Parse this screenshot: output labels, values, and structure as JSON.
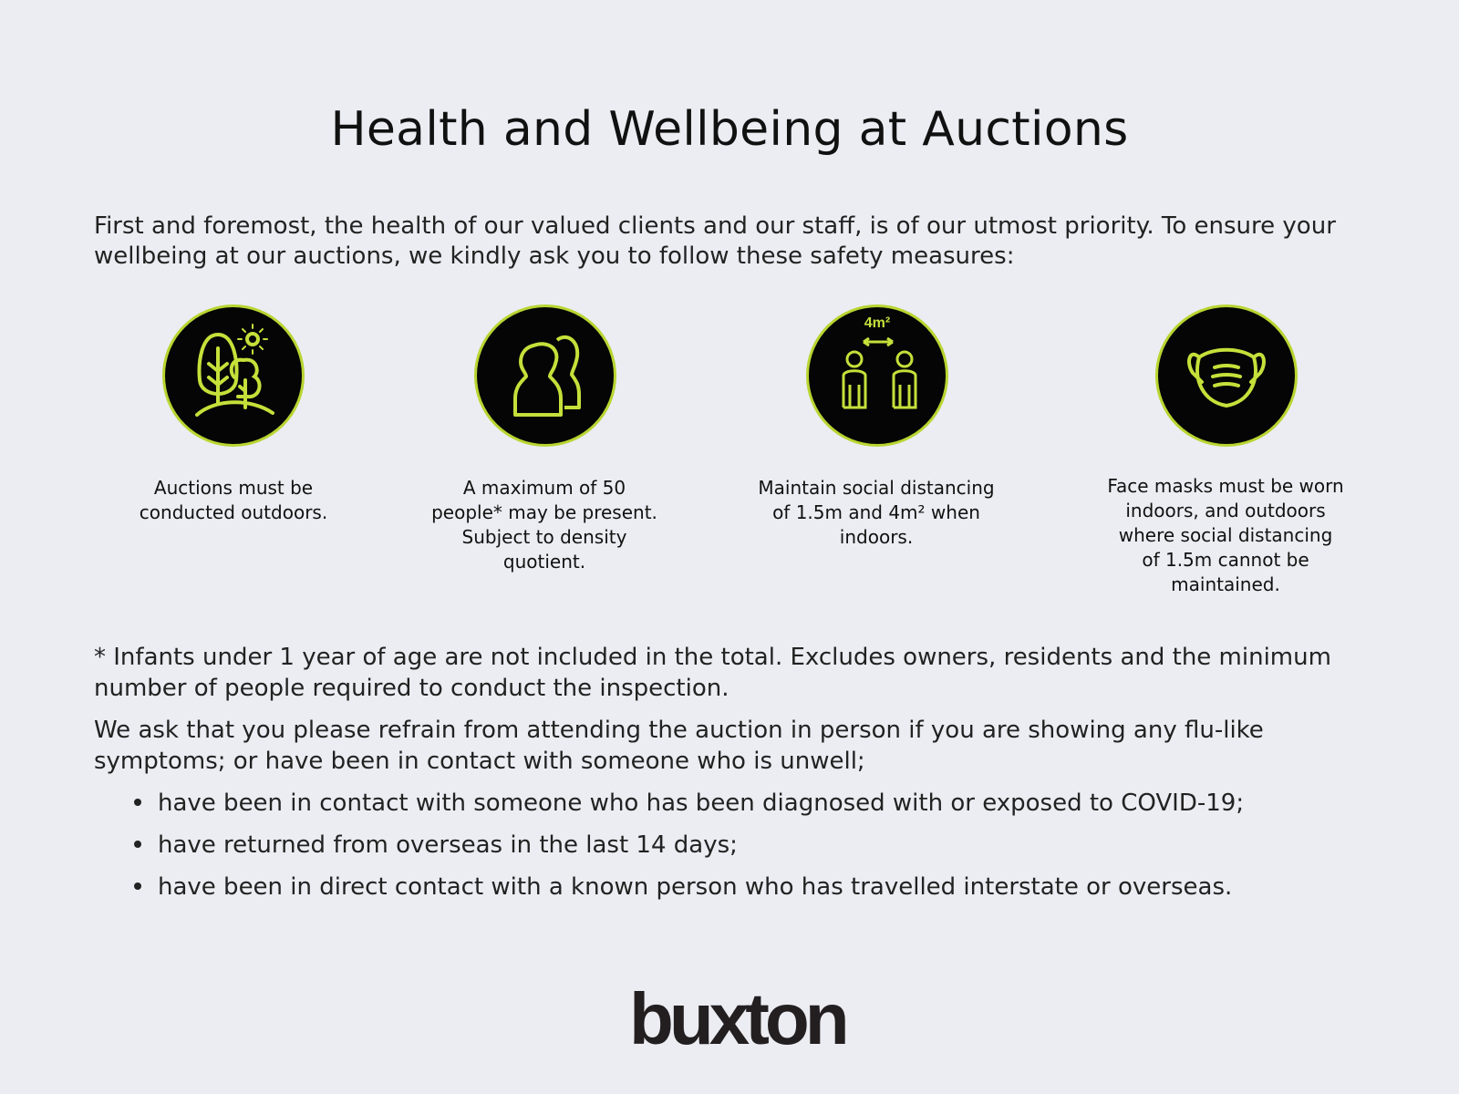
{
  "title": "Health and Wellbeing at Auctions",
  "intro": "First and foremost, the health of our valued clients and our staff, is of our utmost priority. To ensure your wellbeing at our auctions, we kindly ask you to follow these safety measures:",
  "accent_color": "#c5e03a",
  "measures": [
    {
      "icon": "trees-sun-icon",
      "caption": "Auctions must be conducted outdoors."
    },
    {
      "icon": "people-icon",
      "caption": "A maximum of 50 people* may be present. Subject to density quotient."
    },
    {
      "icon": "social-distancing-icon",
      "icon_label": "4m²",
      "caption": "Maintain social distancing of 1.5m and 4m² when indoors."
    },
    {
      "icon": "face-mask-icon",
      "caption": "Face masks must be worn indoors, and outdoors where social distancing of 1.5m cannot be maintained."
    }
  ],
  "footnote": "* Infants under 1 year of age are not included in the total. Excludes owners, residents and the minimum number of people required to conduct the inspection.",
  "request": "We ask that you please refrain from attending the auction in person if you are showing any flu-like symptoms; or have been in contact with someone who is unwell;",
  "bullets": [
    "have been in contact with someone who has been diagnosed with or exposed to COVID-19;",
    "have returned from overseas in the last 14 days;",
    "have been in direct contact with a known person who has travelled interstate or overseas."
  ],
  "logo": "buxton"
}
